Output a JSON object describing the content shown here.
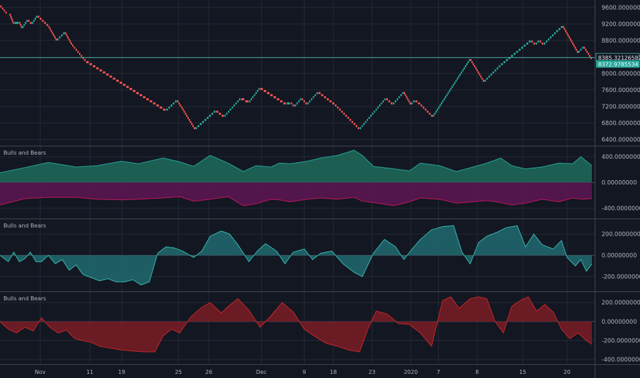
{
  "colors": {
    "background": "#131722",
    "grid": "#262a36",
    "separator": "#434651",
    "axis_text": "#b2b5be",
    "brick_up": "#26a69a",
    "brick_down": "#ef5350",
    "bull_fill": "#1e6b5a",
    "bull_line": "#26a69a",
    "bear_fill": "#5e1553",
    "bear_line": "#c2185b",
    "net_fill": "#216a6f",
    "net_line": "#35b9b0",
    "red_fill": "#7a1c24",
    "red_line": "#c62828",
    "last_price_line": "#4db6ac",
    "zero_line": "#434651"
  },
  "chart_data": [
    {
      "type": "renko",
      "pane": "price",
      "y_ticks": [
        "9600.00000000",
        "9200.00000000",
        "8800.00000000",
        "8000.00000000",
        "7600.00000000",
        "7200.00000000",
        "6800.00000000",
        "6400.00000000"
      ],
      "ylim": [
        6250,
        9780
      ],
      "brick_size": 50,
      "path": [
        [
          0,
          9650
        ],
        [
          5,
          9450
        ],
        [
          7,
          9450
        ],
        [
          10,
          9200
        ],
        [
          14,
          9250
        ],
        [
          16,
          9100
        ],
        [
          20,
          9300
        ],
        [
          23,
          9200
        ],
        [
          27,
          9400
        ],
        [
          35,
          9150
        ],
        [
          41,
          8800
        ],
        [
          47,
          9000
        ],
        [
          52,
          8700
        ],
        [
          62,
          8300
        ],
        [
          120,
          7100
        ],
        [
          128,
          7350
        ],
        [
          131,
          7200
        ],
        [
          141,
          6650
        ],
        [
          156,
          7100
        ],
        [
          162,
          6950
        ],
        [
          174,
          7400
        ],
        [
          180,
          7300
        ],
        [
          188,
          7650
        ],
        [
          207,
          7250
        ],
        [
          210,
          7300
        ],
        [
          213,
          7200
        ],
        [
          218,
          7400
        ],
        [
          222,
          7250
        ],
        [
          230,
          7550
        ],
        [
          242,
          7250
        ],
        [
          260,
          6650
        ],
        [
          279,
          7400
        ],
        [
          284,
          7250
        ],
        [
          292,
          7550
        ],
        [
          297,
          7250
        ],
        [
          300,
          7350
        ],
        [
          304,
          7250
        ],
        [
          313,
          6950
        ],
        [
          340,
          8350
        ],
        [
          350,
          7800
        ],
        [
          362,
          8200
        ],
        [
          384,
          8800
        ],
        [
          387,
          8700
        ],
        [
          390,
          8800
        ],
        [
          393,
          8700
        ],
        [
          402,
          9000
        ],
        [
          407,
          9150
        ],
        [
          418,
          8500
        ],
        [
          422,
          8650
        ],
        [
          428,
          8350
        ]
      ],
      "last_price": {
        "value": 8385.32,
        "label": "8385.32126582"
      },
      "current_price": {
        "value": 8372.98,
        "label": "8372.97855343"
      }
    },
    {
      "type": "area",
      "pane": "indicator-1",
      "title": "Bulls and Bears",
      "y_ticks": [
        "400.00000000",
        "0.00000000",
        "-400.00000000"
      ],
      "ylim": [
        -560,
        560
      ],
      "series": [
        {
          "role": "bull",
          "x": [
            0,
            18,
            35,
            55,
            70,
            88,
            100,
            118,
            130,
            140,
            152,
            165,
            176,
            185,
            196,
            202,
            210,
            222,
            232,
            244,
            256,
            262,
            270,
            285,
            296,
            304,
            318,
            330,
            342,
            352,
            362,
            370,
            380,
            392,
            404,
            414,
            420,
            428
          ],
          "values": [
            150,
            230,
            310,
            240,
            260,
            330,
            290,
            380,
            320,
            250,
            420,
            300,
            170,
            260,
            240,
            300,
            290,
            330,
            380,
            420,
            500,
            420,
            250,
            210,
            180,
            300,
            260,
            170,
            240,
            300,
            380,
            260,
            210,
            240,
            300,
            290,
            400,
            260
          ]
        },
        {
          "role": "bear",
          "x": [
            0,
            18,
            35,
            55,
            70,
            88,
            100,
            118,
            130,
            140,
            152,
            165,
            176,
            185,
            196,
            202,
            210,
            222,
            232,
            244,
            256,
            262,
            270,
            285,
            296,
            304,
            318,
            330,
            342,
            352,
            362,
            370,
            380,
            392,
            404,
            414,
            420,
            428
          ],
          "values": [
            -350,
            -250,
            -230,
            -230,
            -260,
            -270,
            -260,
            -240,
            -220,
            -290,
            -260,
            -220,
            -360,
            -330,
            -260,
            -270,
            -300,
            -260,
            -240,
            -260,
            -230,
            -290,
            -310,
            -360,
            -300,
            -240,
            -260,
            -320,
            -300,
            -280,
            -310,
            -350,
            -320,
            -260,
            -300,
            -240,
            -260,
            -250
          ]
        }
      ]
    },
    {
      "type": "area",
      "pane": "indicator-2",
      "title": "Bulls and Bears",
      "y_ticks": [
        "200.00000000",
        "0.00000000",
        "-200.00000000"
      ],
      "ylim": [
        -340,
        340
      ],
      "series": [
        {
          "role": "net",
          "x": [
            0,
            6,
            10,
            14,
            18,
            22,
            26,
            30,
            35,
            40,
            45,
            50,
            55,
            60,
            66,
            72,
            78,
            84,
            90,
            96,
            102,
            108,
            114,
            120,
            126,
            132,
            140,
            146,
            152,
            160,
            166,
            172,
            180,
            186,
            192,
            200,
            206,
            212,
            220,
            226,
            232,
            240,
            248,
            256,
            262,
            270,
            278,
            286,
            292,
            298,
            304,
            312,
            320,
            328,
            334,
            340,
            346,
            352,
            360,
            366,
            374,
            380,
            386,
            392,
            400,
            406,
            410,
            416,
            420,
            424,
            428
          ],
          "values": [
            0,
            -60,
            30,
            -60,
            -30,
            30,
            -60,
            -60,
            0,
            -80,
            -40,
            -140,
            -90,
            -180,
            -210,
            -240,
            -220,
            -250,
            -250,
            -230,
            -280,
            -250,
            20,
            80,
            70,
            40,
            -20,
            40,
            180,
            230,
            200,
            100,
            -60,
            40,
            110,
            40,
            -80,
            30,
            60,
            -40,
            20,
            40,
            -80,
            -160,
            -200,
            20,
            150,
            80,
            -40,
            60,
            150,
            240,
            270,
            280,
            30,
            -80,
            120,
            180,
            220,
            260,
            280,
            80,
            200,
            100,
            60,
            140,
            -20,
            -100,
            -40,
            -150,
            -80
          ]
        }
      ]
    },
    {
      "type": "area",
      "pane": "indicator-3",
      "title": "Bulls and Bears",
      "y_ticks": [
        "200.00000000",
        "0.00000000",
        "-200.00000000",
        "-400.00000000"
      ],
      "ylim": [
        -450,
        310
      ],
      "series": [
        {
          "role": "net",
          "x": [
            0,
            6,
            12,
            18,
            24,
            30,
            36,
            42,
            48,
            54,
            60,
            66,
            72,
            80,
            88,
            96,
            104,
            112,
            118,
            124,
            130,
            138,
            146,
            152,
            160,
            166,
            172,
            180,
            188,
            196,
            204,
            212,
            220,
            228,
            236,
            244,
            252,
            260,
            266,
            272,
            280,
            288,
            296,
            304,
            312,
            320,
            326,
            332,
            340,
            346,
            352,
            358,
            364,
            370,
            376,
            382,
            388,
            394,
            400,
            406,
            412,
            418,
            424,
            428
          ],
          "values": [
            0,
            -80,
            -120,
            -60,
            -100,
            40,
            -60,
            -120,
            -90,
            -180,
            -200,
            -220,
            -260,
            -280,
            -300,
            -310,
            -320,
            -320,
            -150,
            -80,
            -120,
            50,
            150,
            200,
            90,
            170,
            240,
            120,
            -60,
            60,
            200,
            100,
            -80,
            -160,
            -230,
            -260,
            -300,
            -320,
            -80,
            110,
            80,
            -20,
            -30,
            -120,
            -260,
            220,
            260,
            140,
            240,
            260,
            240,
            0,
            -120,
            160,
            220,
            260,
            110,
            180,
            100,
            -80,
            -180,
            -120,
            -200,
            -240
          ]
        }
      ]
    }
  ],
  "x_axis": {
    "labels": [
      {
        "text": "Nov",
        "x": 29
      },
      {
        "text": "11",
        "x": 65
      },
      {
        "text": "19",
        "x": 88
      },
      {
        "text": "25",
        "x": 129
      },
      {
        "text": "26",
        "x": 151
      },
      {
        "text": "Dec",
        "x": 189
      },
      {
        "text": "9",
        "x": 220
      },
      {
        "text": "18",
        "x": 241
      },
      {
        "text": "23",
        "x": 269
      },
      {
        "text": "2020",
        "x": 297
      },
      {
        "text": "7",
        "x": 317
      },
      {
        "text": "8",
        "x": 345
      },
      {
        "text": "15",
        "x": 378
      },
      {
        "text": "20",
        "x": 410
      }
    ],
    "range": [
      0,
      430
    ]
  }
}
